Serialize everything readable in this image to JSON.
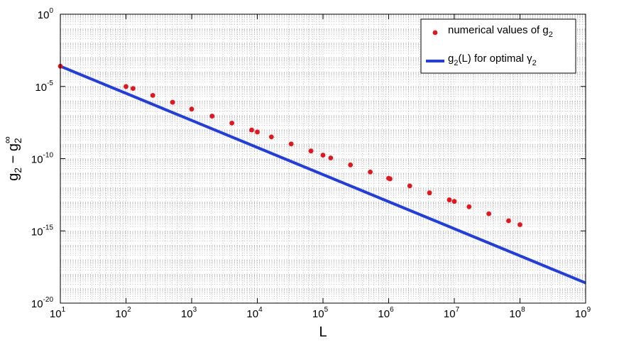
{
  "chart_data": {
    "type": "scatter",
    "xscale": "log",
    "yscale": "log",
    "xlim": [
      10,
      1000000000
    ],
    "ylim": [
      1e-20,
      1
    ],
    "grid": true,
    "legend_position": "top-right",
    "xlabel": "L",
    "ylabel": {
      "base": "g",
      "sub": "2",
      "minus": " − ",
      "base2": "g",
      "sub2": "2",
      "sup2": "∞"
    },
    "x_ticks": [
      {
        "base": "10",
        "exp": "1",
        "value": 10
      },
      {
        "base": "10",
        "exp": "2",
        "value": 100
      },
      {
        "base": "10",
        "exp": "3",
        "value": 1000
      },
      {
        "base": "10",
        "exp": "4",
        "value": 10000
      },
      {
        "base": "10",
        "exp": "5",
        "value": 100000
      },
      {
        "base": "10",
        "exp": "6",
        "value": 1000000
      },
      {
        "base": "10",
        "exp": "7",
        "value": 10000000
      },
      {
        "base": "10",
        "exp": "8",
        "value": 100000000
      },
      {
        "base": "10",
        "exp": "9",
        "value": 1000000000
      }
    ],
    "y_ticks": [
      {
        "base": "10",
        "exp": "0",
        "value": 1
      },
      {
        "base": "10",
        "exp": "-5",
        "value": 1e-05
      },
      {
        "base": "10",
        "exp": "-10",
        "value": 1e-10
      },
      {
        "base": "10",
        "exp": "-15",
        "value": 1e-15
      },
      {
        "base": "10",
        "exp": "-20",
        "value": 1e-20
      }
    ],
    "series": [
      {
        "name": {
          "text": "numerical values of g",
          "sub": "2"
        },
        "kind": "markers",
        "color": "#e8141a",
        "points": [
          [
            10,
            0.00025
          ],
          [
            100,
            9.8e-06
          ],
          [
            128,
            7.2e-06
          ],
          [
            256,
            2.4e-06
          ],
          [
            512,
            8e-07
          ],
          [
            1000,
            2.7e-07
          ],
          [
            2048,
            8.8e-08
          ],
          [
            4096,
            2.9e-08
          ],
          [
            8192,
            9.6e-09
          ],
          [
            10000,
            7e-09
          ],
          [
            16384,
            3.2e-09
          ],
          [
            32768,
            1.05e-09
          ],
          [
            65536,
            3.4e-10
          ],
          [
            100000,
            1.75e-10
          ],
          [
            131072,
            1.12e-10
          ],
          [
            262144,
            3.7e-11
          ],
          [
            524288,
            1.2e-11
          ],
          [
            1000000,
            4.4e-12
          ],
          [
            1048576,
            4e-12
          ],
          [
            2097152,
            1.3e-12
          ],
          [
            4194304,
            4.3e-13
          ],
          [
            8388608,
            1.4e-13
          ],
          [
            10000000,
            1.1e-13
          ],
          [
            16777216,
            4.7e-14
          ],
          [
            33554432,
            1.53e-14
          ],
          [
            67108864,
            5e-15
          ],
          [
            100000000,
            2.7e-15
          ]
        ]
      },
      {
        "name": {
          "text": "g",
          "sub": "2",
          "text2": "(L) for optimal ",
          "greek": "γ",
          "sub2": "2"
        },
        "kind": "line",
        "color": "#1f3ce6",
        "points": [
          [
            10,
            0.00025
          ],
          [
            1000000000,
            2.5e-19
          ]
        ]
      }
    ]
  }
}
